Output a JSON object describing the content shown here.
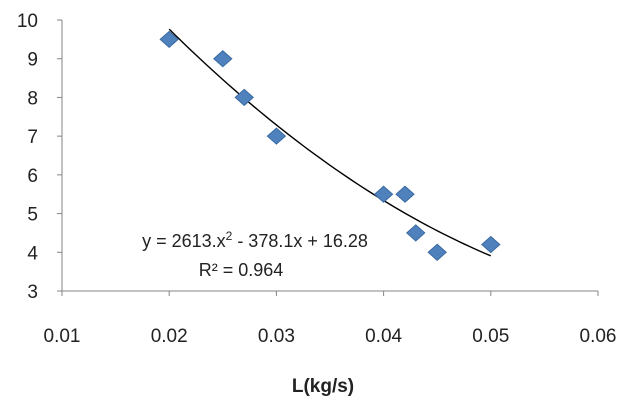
{
  "chart_data": {
    "type": "scatter",
    "title": "",
    "xlabel": "L(kg/s)",
    "ylabel": "",
    "xlim": [
      0.01,
      0.06
    ],
    "ylim": [
      3,
      10
    ],
    "x_ticks": [
      "0.01",
      "0.02",
      "0.03",
      "0.04",
      "0.05",
      "0.06"
    ],
    "y_ticks": [
      "3",
      "4",
      "5",
      "6",
      "7",
      "8",
      "9",
      "10"
    ],
    "grid": false,
    "legend": "none",
    "colors": {
      "marker": "#4f81bd",
      "marker_edge": "#3a6aa3",
      "trendline": "#000000",
      "axis": "#868686"
    },
    "series": [
      {
        "marker": "diamond",
        "x": [
          0.02,
          0.025,
          0.027,
          0.03,
          0.04,
          0.042,
          0.043,
          0.045,
          0.05
        ],
        "y": [
          9.5,
          9.0,
          8.0,
          7.0,
          5.5,
          5.5,
          4.5,
          4.0,
          4.2
        ]
      }
    ],
    "trendline": {
      "type": "polynomial",
      "coefficients": [
        2613,
        -378.1,
        16.28
      ],
      "x_range": [
        0.02,
        0.05
      ],
      "equation": "y = 2613.x² - 378.1x + 16.28",
      "r_squared": "R² = 0.964"
    }
  }
}
